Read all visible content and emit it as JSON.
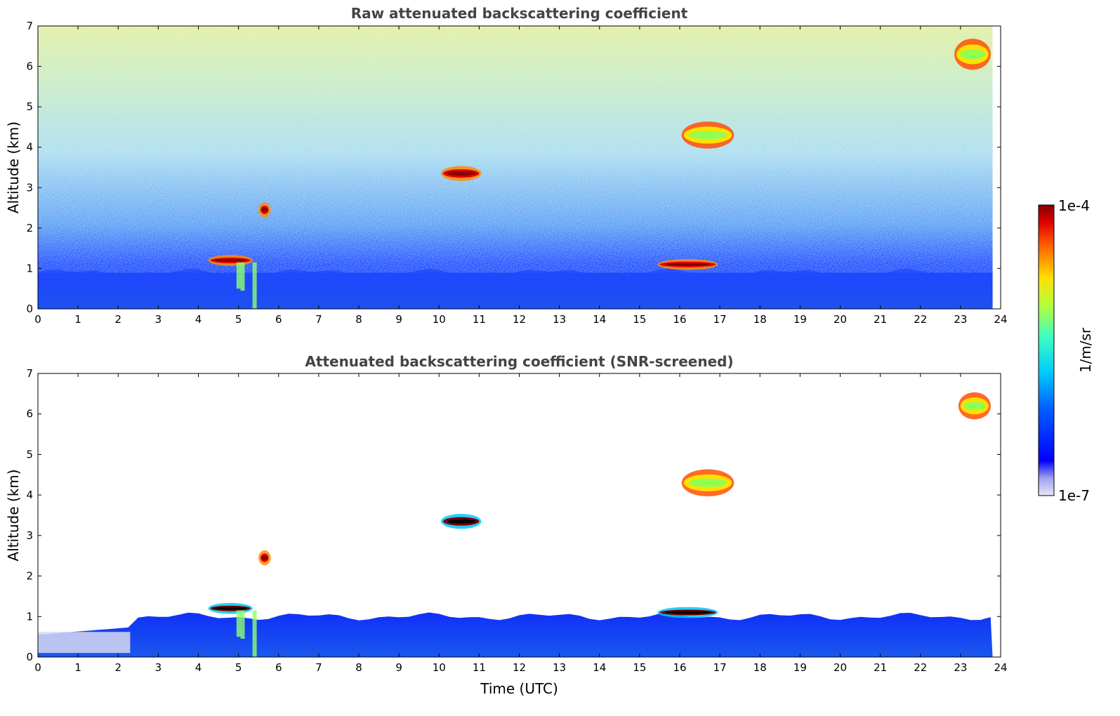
{
  "chart_data": [
    {
      "type": "heatmap",
      "title": "Raw attenuated backscattering coefficient",
      "xlabel": "",
      "ylabel": "Altitude (km)",
      "xlim": [
        0,
        24
      ],
      "ylim": [
        0,
        7
      ],
      "xticks": [
        "0",
        "1",
        "2",
        "3",
        "4",
        "5",
        "6",
        "7",
        "8",
        "9",
        "10",
        "11",
        "12",
        "13",
        "14",
        "15",
        "16",
        "17",
        "18",
        "19",
        "20",
        "21",
        "22",
        "23",
        "24"
      ],
      "yticks": [
        "0",
        "1",
        "2",
        "3",
        "4",
        "5",
        "6",
        "7"
      ],
      "grid": false,
      "features": [
        {
          "t0": 4.3,
          "t1": 5.3,
          "alt": 1.2,
          "thickness": 0.2,
          "level": "high"
        },
        {
          "t0": 5.55,
          "t1": 5.75,
          "alt": 2.45,
          "thickness": 0.3,
          "level": "high"
        },
        {
          "t0": 10.1,
          "t1": 11.0,
          "alt": 3.35,
          "thickness": 0.3,
          "level": "high"
        },
        {
          "t0": 15.5,
          "t1": 16.9,
          "alt": 1.1,
          "thickness": 0.2,
          "level": "high"
        },
        {
          "t0": 16.1,
          "t1": 17.3,
          "alt": 4.3,
          "thickness": 0.6,
          "level": "medium"
        },
        {
          "t0": 22.9,
          "t1": 23.7,
          "alt": 6.3,
          "thickness": 0.7,
          "level": "medium"
        }
      ],
      "boundary_layer_top_km": 0.9
    },
    {
      "type": "heatmap",
      "title": "Attenuated backscattering coefficient (SNR-screened)",
      "xlabel": "Time (UTC)",
      "ylabel": "Altitude (km)",
      "xlim": [
        0,
        24
      ],
      "ylim": [
        0,
        7
      ],
      "xticks": [
        "0",
        "1",
        "2",
        "3",
        "4",
        "5",
        "6",
        "7",
        "8",
        "9",
        "10",
        "11",
        "12",
        "13",
        "14",
        "15",
        "16",
        "17",
        "18",
        "19",
        "20",
        "21",
        "22",
        "23",
        "24"
      ],
      "yticks": [
        "0",
        "1",
        "2",
        "3",
        "4",
        "5",
        "6",
        "7"
      ],
      "grid": false,
      "features": [
        {
          "t0": 4.3,
          "t1": 5.3,
          "alt": 1.2,
          "thickness": 0.2,
          "level": "saturated"
        },
        {
          "t0": 5.55,
          "t1": 5.75,
          "alt": 2.45,
          "thickness": 0.3,
          "level": "high"
        },
        {
          "t0": 10.1,
          "t1": 11.0,
          "alt": 3.35,
          "thickness": 0.3,
          "level": "saturated"
        },
        {
          "t0": 15.5,
          "t1": 16.9,
          "alt": 1.1,
          "thickness": 0.2,
          "level": "saturated"
        },
        {
          "t0": 16.1,
          "t1": 17.3,
          "alt": 4.3,
          "thickness": 0.6,
          "level": "medium"
        },
        {
          "t0": 23.0,
          "t1": 23.7,
          "alt": 6.2,
          "thickness": 0.6,
          "level": "medium"
        }
      ],
      "boundary_layer_top_km": 1.0
    }
  ],
  "colorbar": {
    "label": "1/m/sr",
    "max_label": "1e-4",
    "min_label": "1e-7",
    "colormap": "jet"
  },
  "colors": {
    "axis": "#000000",
    "title": "#444444",
    "background": "#ffffff"
  }
}
